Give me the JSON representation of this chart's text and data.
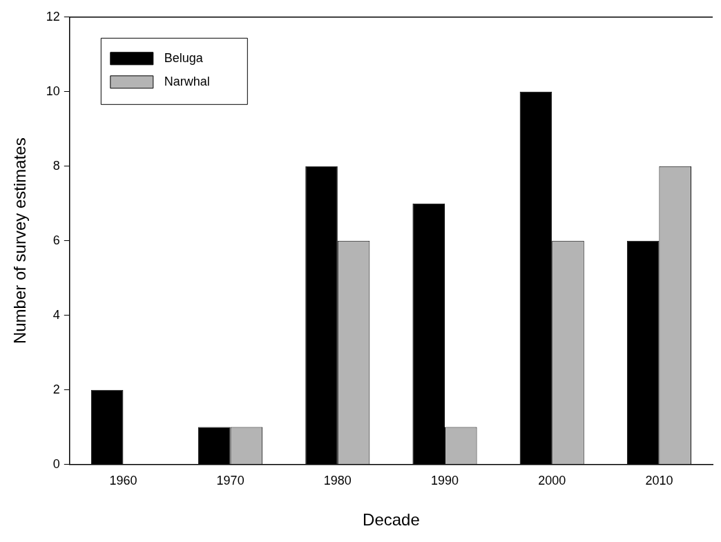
{
  "chart_data": {
    "type": "bar",
    "xlabel": "Decade",
    "ylabel": "Number of survey estimates",
    "categories": [
      "1960",
      "1970",
      "1980",
      "1990",
      "2000",
      "2010"
    ],
    "series": [
      {
        "name": "Beluga",
        "color": "#000000",
        "values": [
          2,
          1,
          8,
          7,
          10,
          6
        ]
      },
      {
        "name": "Narwhal",
        "color": "#b4b4b4",
        "values": [
          0,
          1,
          6,
          1,
          6,
          8
        ]
      }
    ],
    "ylim": [
      0,
      12
    ],
    "yticks": [
      0,
      2,
      4,
      6,
      8,
      10,
      12
    ],
    "grid": false,
    "legend": "top left"
  }
}
